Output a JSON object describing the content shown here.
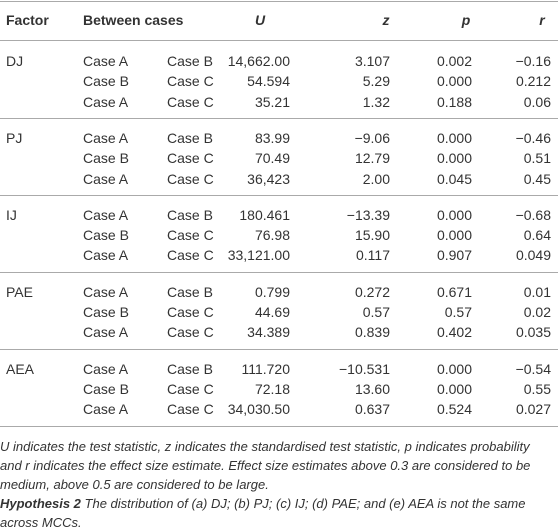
{
  "table": {
    "header": [
      "Factor",
      "Between cases",
      "U",
      "z",
      "p",
      "r"
    ],
    "groups": [
      {
        "factor": "DJ",
        "rows": [
          [
            "Case A",
            "Case B",
            "14,662.00",
            "3.107",
            "0.002",
            "−0.16"
          ],
          [
            "Case B",
            "Case C",
            "54.594",
            "5.29",
            "0.000",
            "0.212"
          ],
          [
            "Case A",
            "Case C",
            "35.21",
            "1.32",
            "0.188",
            "0.06"
          ]
        ]
      },
      {
        "factor": "PJ",
        "rows": [
          [
            "Case A",
            "Case B",
            "83.99",
            "−9.06",
            "0.000",
            "−0.46"
          ],
          [
            "Case B",
            "Case C",
            "70.49",
            "12.79",
            "0.000",
            "0.51"
          ],
          [
            "Case A",
            "Case C",
            "36,423",
            "2.00",
            "0.045",
            "0.45"
          ]
        ]
      },
      {
        "factor": "IJ",
        "rows": [
          [
            "Case A",
            "Case B",
            "180.461",
            "−13.39",
            "0.000",
            "−0.68"
          ],
          [
            "Case B",
            "Case C",
            "76.98",
            "15.90",
            "0.000",
            "0.64"
          ],
          [
            "Case A",
            "Case C",
            "33,121.00",
            "0.117",
            "0.907",
            "0.049"
          ]
        ]
      },
      {
        "factor": "PAE",
        "rows": [
          [
            "Case A",
            "Case B",
            "0.799",
            "0.272",
            "0.671",
            "0.01"
          ],
          [
            "Case B",
            "Case C",
            "44.69",
            "0.57",
            "0.57",
            "0.02"
          ],
          [
            "Case A",
            "Case C",
            "34.389",
            "0.839",
            "0.402",
            "0.035"
          ]
        ]
      },
      {
        "factor": "AEA",
        "rows": [
          [
            "Case A",
            "Case B",
            "111.720",
            "−10.531",
            "0.000",
            "−0.54"
          ],
          [
            "Case B",
            "Case C",
            "72.18",
            "13.60",
            "0.000",
            "0.55"
          ],
          [
            "Case A",
            "Case C",
            "34,030.50",
            "0.637",
            "0.524",
            "0.027"
          ]
        ]
      }
    ]
  },
  "note": "U indicates the test statistic, z indicates the standardised test statistic, p indicates probability and r indicates the effect size estimate. Effect size estimates above 0.3 are considered to be medium, above 0.5 are considered to be large.",
  "hypothesis": {
    "label": "Hypothesis 2",
    "text": "The distribution of (a) DJ; (b) PJ; (c) IJ; (d) PAE; and (e) AEA is not the same across MCCs."
  }
}
